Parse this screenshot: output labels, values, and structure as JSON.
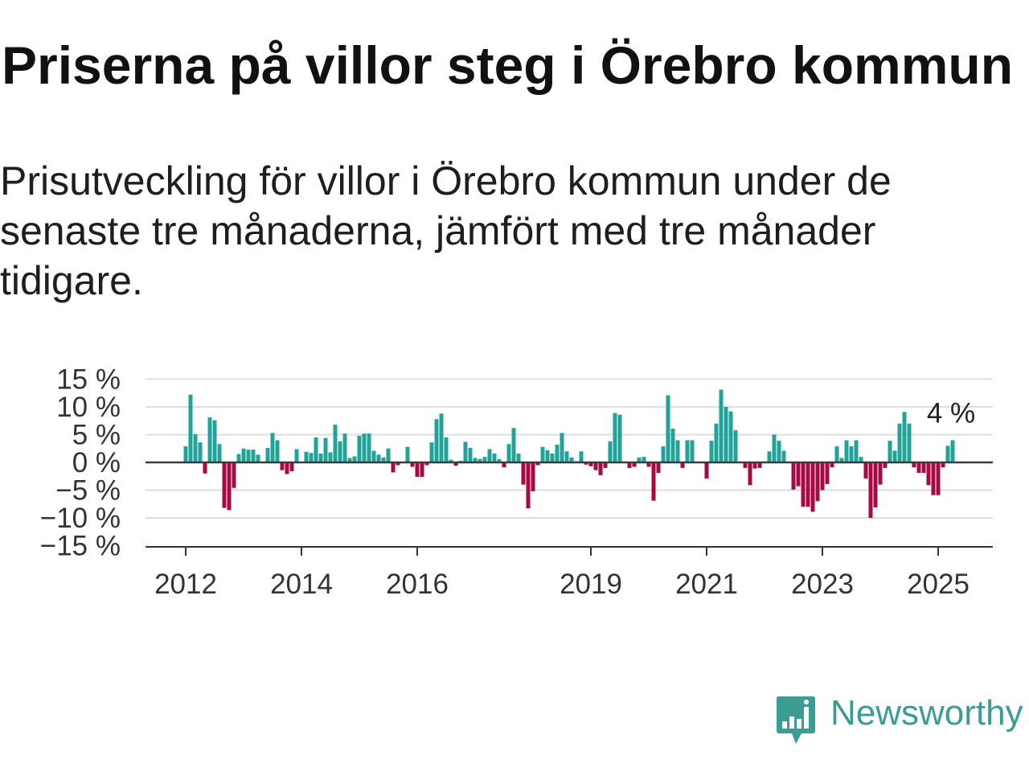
{
  "chart_data": {
    "type": "bar",
    "title": "Priserna på villor steg i Örebro kommun",
    "subtitle": "Prisutveckling för villor i Örebro kommun under de senaste tre månaderna, jämfört med tre månader tidigare.",
    "xlabel": "",
    "ylabel": "",
    "ylim": [
      -15,
      15
    ],
    "grid": true,
    "colors": {
      "positive": "#22a39a",
      "negative": "#a50a44",
      "zero_line": "#3c3c3c",
      "grid": "#dedede"
    },
    "y_ticks": [
      {
        "value": 15,
        "label": "15 %"
      },
      {
        "value": 10,
        "label": "10 %"
      },
      {
        "value": 5,
        "label": "5 %"
      },
      {
        "value": 0,
        "label": "0 %"
      },
      {
        "value": -5,
        "label": "−5 %"
      },
      {
        "value": -10,
        "label": "−10 %"
      },
      {
        "value": -15,
        "label": "−15 %"
      }
    ],
    "x_ticks": [
      {
        "value": "2012-01",
        "label": "2012"
      },
      {
        "value": "2014-01",
        "label": "2014"
      },
      {
        "value": "2016-01",
        "label": "2016"
      },
      {
        "value": "2019-01",
        "label": "2019"
      },
      {
        "value": "2021-01",
        "label": "2021"
      },
      {
        "value": "2023-01",
        "label": "2023"
      },
      {
        "value": "2025-01",
        "label": "2025"
      }
    ],
    "last_value_label": "4 %",
    "x": [
      "2012-01",
      "2012-02",
      "2012-03",
      "2012-04",
      "2012-05",
      "2012-06",
      "2012-07",
      "2012-08",
      "2012-09",
      "2012-10",
      "2012-11",
      "2012-12",
      "2013-01",
      "2013-02",
      "2013-03",
      "2013-04",
      "2013-05",
      "2013-06",
      "2013-07",
      "2013-08",
      "2013-09",
      "2013-10",
      "2013-11",
      "2013-12",
      "2014-01",
      "2014-02",
      "2014-03",
      "2014-04",
      "2014-05",
      "2014-06",
      "2014-07",
      "2014-08",
      "2014-09",
      "2014-10",
      "2014-11",
      "2014-12",
      "2015-01",
      "2015-02",
      "2015-03",
      "2015-04",
      "2015-05",
      "2015-06",
      "2015-07",
      "2015-08",
      "2015-09",
      "2015-10",
      "2015-11",
      "2015-12",
      "2016-01",
      "2016-02",
      "2016-03",
      "2016-04",
      "2016-05",
      "2016-06",
      "2016-07",
      "2016-08",
      "2016-09",
      "2016-10",
      "2016-11",
      "2016-12",
      "2017-01",
      "2017-02",
      "2017-03",
      "2017-04",
      "2017-05",
      "2017-06",
      "2017-07",
      "2017-08",
      "2017-09",
      "2017-10",
      "2017-11",
      "2017-12",
      "2018-01",
      "2018-02",
      "2018-03",
      "2018-04",
      "2018-05",
      "2018-06",
      "2018-07",
      "2018-08",
      "2018-09",
      "2018-10",
      "2018-11",
      "2018-12",
      "2019-01",
      "2019-02",
      "2019-03",
      "2019-04",
      "2019-05",
      "2019-06",
      "2019-07",
      "2019-08",
      "2019-09",
      "2019-10",
      "2019-11",
      "2019-12",
      "2020-01",
      "2020-02",
      "2020-03",
      "2020-04",
      "2020-05",
      "2020-06",
      "2020-07",
      "2020-08",
      "2020-09",
      "2020-10",
      "2020-11",
      "2020-12",
      "2021-01",
      "2021-02",
      "2021-03",
      "2021-04",
      "2021-05",
      "2021-06",
      "2021-07",
      "2021-08",
      "2021-09",
      "2021-10",
      "2021-11",
      "2021-12",
      "2022-01",
      "2022-02",
      "2022-03",
      "2022-04",
      "2022-05",
      "2022-06",
      "2022-07",
      "2022-08",
      "2022-09",
      "2022-10",
      "2022-11",
      "2022-12",
      "2023-01",
      "2023-02",
      "2023-03",
      "2023-04",
      "2023-05",
      "2023-06",
      "2023-07",
      "2023-08",
      "2023-09",
      "2023-10",
      "2023-11",
      "2023-12",
      "2024-01",
      "2024-02",
      "2024-03",
      "2024-04",
      "2024-05",
      "2024-06",
      "2024-07",
      "2024-08",
      "2024-09",
      "2024-10",
      "2024-11",
      "2024-12",
      "2025-01",
      "2025-02",
      "2025-03",
      "2025-04"
    ],
    "values": [
      2.9,
      12.2,
      5.1,
      3.6,
      -2.0,
      8.1,
      7.6,
      3.3,
      -8.2,
      -8.6,
      -4.6,
      1.5,
      2.5,
      2.3,
      2.3,
      1.4,
      0,
      2.6,
      5.3,
      4.0,
      -1.4,
      -2.1,
      -1.6,
      2.4,
      0,
      1.9,
      1.7,
      4.5,
      1.6,
      4.4,
      1.8,
      6.8,
      3.8,
      5.2,
      0.8,
      1.1,
      4.8,
      5.2,
      5.2,
      2.1,
      1.4,
      0.9,
      2.5,
      -1.8,
      -0.5,
      0,
      2.8,
      -0.8,
      -2.6,
      -2.6,
      -0.5,
      3.6,
      7.8,
      8.8,
      4.5,
      0.5,
      -0.6,
      0.3,
      3.7,
      2.6,
      0.8,
      0.6,
      1.0,
      2.4,
      1.6,
      0.6,
      -0.9,
      3.3,
      6.2,
      1.6,
      -4.0,
      -8.3,
      -5.2,
      -0.5,
      2.8,
      2.2,
      1.6,
      3.2,
      5.3,
      2.0,
      0.9,
      0.2,
      2.0,
      -0.4,
      -0.7,
      -1.4,
      -2.3,
      -1.0,
      3.8,
      8.9,
      8.6,
      0,
      -1.0,
      -0.8,
      0.9,
      1.0,
      -0.8,
      -6.9,
      -1.9,
      2.9,
      12.1,
      6.1,
      4.0,
      -1.0,
      4.0,
      4.0,
      0,
      0,
      -2.9,
      3.9,
      7.0,
      13.1,
      10.0,
      9.2,
      5.8,
      0,
      -1.0,
      -4.1,
      -1.1,
      -1.0,
      0,
      2.0,
      5.0,
      3.9,
      2.1,
      0,
      -4.9,
      -4.3,
      -8.0,
      -8.0,
      -8.9,
      -7.0,
      -5.0,
      -3.9,
      -0.9,
      2.9,
      0.8,
      4.0,
      2.9,
      4.0,
      1.0,
      -2.9,
      -10.0,
      -8.1,
      -4.0,
      -1.0,
      3.9,
      2.1,
      7.0,
      9.1,
      7.0,
      -0.9,
      -1.9,
      -1.9,
      -4.1,
      -5.9,
      -5.9,
      -0.9,
      3.0,
      4.0
    ]
  },
  "logo": {
    "text": "Newsworthy",
    "icon": "newsworthy-logo-icon",
    "color": "#3b9c95"
  }
}
